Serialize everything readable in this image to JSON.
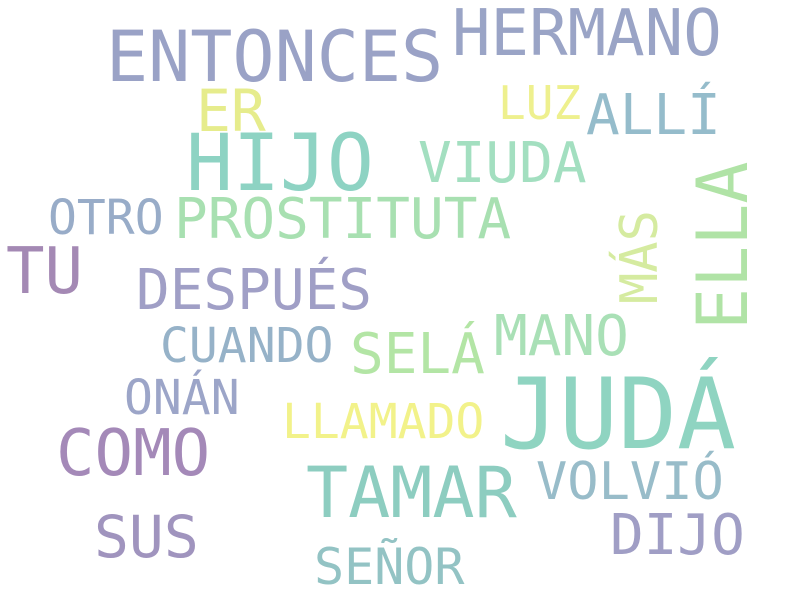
{
  "words": [
    {
      "text": "HERMANO",
      "color": "#9aa4c6"
    },
    {
      "text": "ENTONCES",
      "color": "#9aa2c6"
    },
    {
      "text": "ER",
      "color": "#e6ec8c"
    },
    {
      "text": "LUZ",
      "color": "#eef08e"
    },
    {
      "text": "ALLÍ",
      "color": "#95bccb"
    },
    {
      "text": "HIJO",
      "color": "#8ed3c3"
    },
    {
      "text": "VIUDA",
      "color": "#a3dfc0"
    },
    {
      "text": "ELLA",
      "color": "#b0e3a6"
    },
    {
      "text": "OTRO",
      "color": "#98acc8"
    },
    {
      "text": "PROSTITUTA",
      "color": "#a8e0b1"
    },
    {
      "text": "MÁS",
      "color": "#d5eba0"
    },
    {
      "text": "TU",
      "color": "#a489b4"
    },
    {
      "text": "DESPUÉS",
      "color": "#a09fc6"
    },
    {
      "text": "CUANDO",
      "color": "#96b2c8"
    },
    {
      "text": "SELÁ",
      "color": "#b3e5a5"
    },
    {
      "text": "MANO",
      "color": "#a9e0b6"
    },
    {
      "text": "ONÁN",
      "color": "#9ca5c8"
    },
    {
      "text": "LLAMADO",
      "color": "#f2f28a"
    },
    {
      "text": "JUDÁ",
      "color": "#8fd4c1"
    },
    {
      "text": "COMO",
      "color": "#a489b8"
    },
    {
      "text": "TAMAR",
      "color": "#8dcdc0"
    },
    {
      "text": "VOLVIÓ",
      "color": "#98bcc9"
    },
    {
      "text": "SUS",
      "color": "#a094be"
    },
    {
      "text": "DIJO",
      "color": "#a09ec5"
    },
    {
      "text": "SEÑOR",
      "color": "#93c3c4"
    }
  ]
}
